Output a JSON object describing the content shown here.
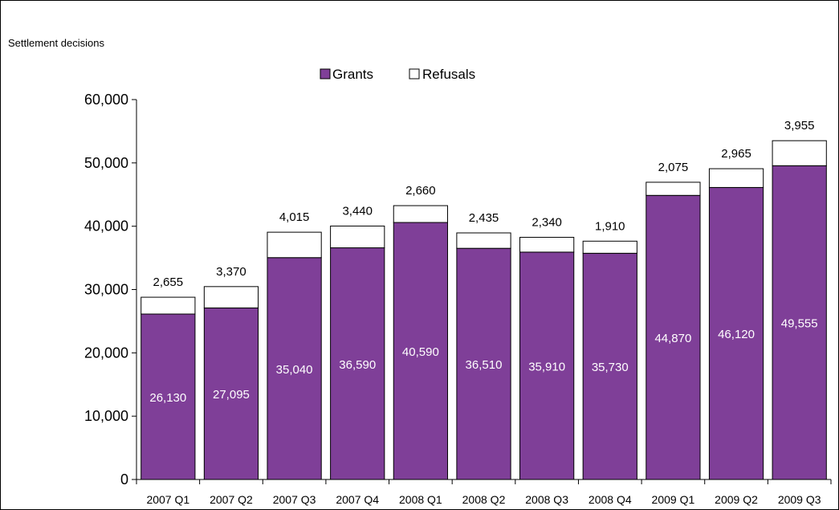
{
  "chart_data": {
    "type": "bar",
    "stacked": true,
    "title": "",
    "xlabel": "",
    "ylabel": "Settlement decisions",
    "ylim": [
      0,
      60000
    ],
    "yticks": [
      0,
      10000,
      20000,
      30000,
      40000,
      50000,
      60000
    ],
    "ytick_labels": [
      "0",
      "10,000",
      "20,000",
      "30,000",
      "40,000",
      "50,000",
      "60,000"
    ],
    "grid": false,
    "legend_position": "top-center",
    "categories": [
      "2007 Q1",
      "2007 Q2",
      "2007 Q3",
      "2007 Q4",
      "2008 Q1",
      "2008 Q2",
      "2008 Q3",
      "2008 Q4",
      "2009 Q1",
      "2009 Q2",
      "2009 Q3"
    ],
    "series": [
      {
        "name": "Grants",
        "color": "#7f3f98",
        "values": [
          26130,
          27095,
          35040,
          36590,
          40590,
          36510,
          35910,
          35730,
          44870,
          46120,
          49555
        ],
        "labels": [
          "26,130",
          "27,095",
          "35,040",
          "36,590",
          "40,590",
          "36,510",
          "35,910",
          "35,730",
          "44,870",
          "46,120",
          "49,555"
        ]
      },
      {
        "name": "Refusals",
        "color": "#ffffff",
        "values": [
          2655,
          3370,
          4015,
          3440,
          2660,
          2435,
          2340,
          1910,
          2075,
          2965,
          3955
        ],
        "labels": [
          "2,655",
          "3,370",
          "4,015",
          "3,440",
          "2,660",
          "2,435",
          "2,340",
          "1,910",
          "2,075",
          "2,965",
          "3,955"
        ]
      }
    ]
  }
}
